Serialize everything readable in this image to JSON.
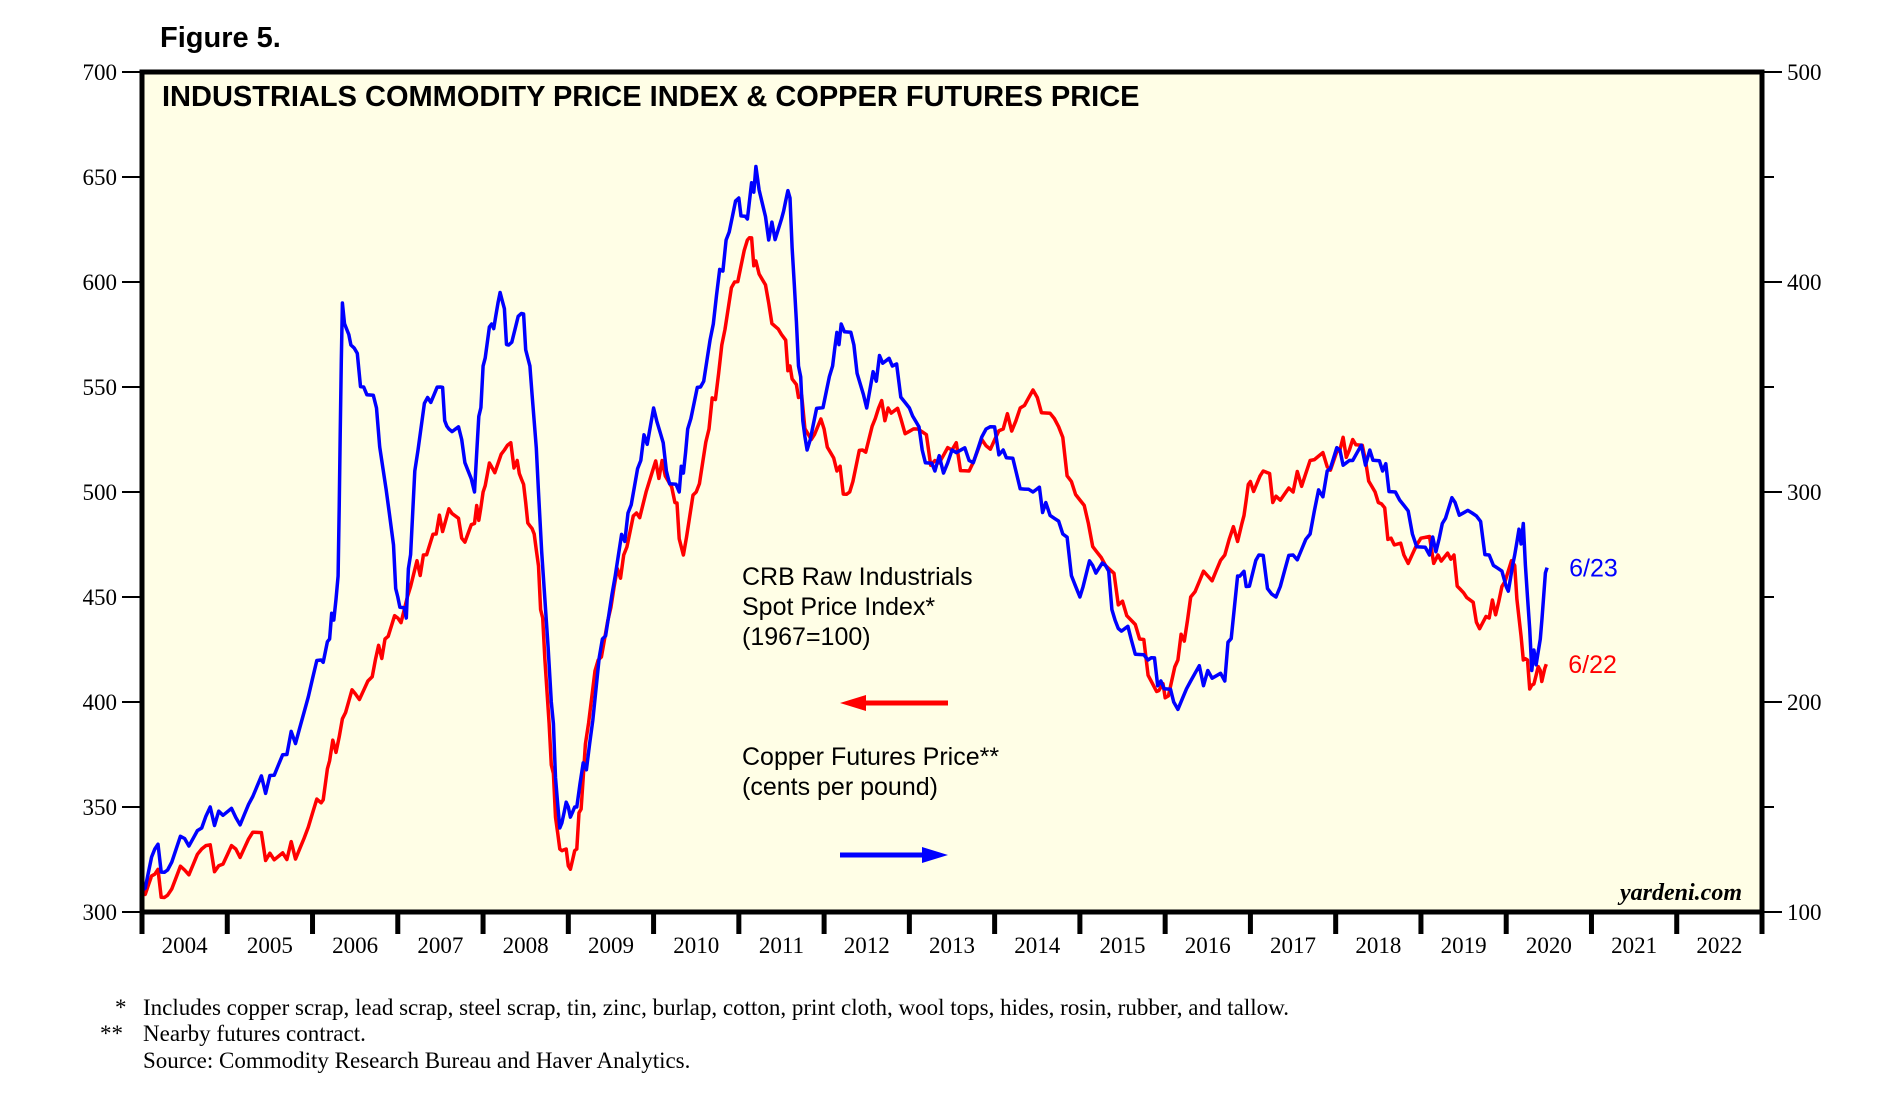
{
  "figure_label": "Figure 5.",
  "footnotes": [
    {
      "mark": "*",
      "text": "Includes copper scrap, lead scrap, steel scrap, tin, zinc, burlap, cotton, print cloth, wool tops, hides, rosin, rubber, and tallow."
    },
    {
      "mark": "**",
      "text": "Nearby futures contract."
    },
    {
      "mark": "",
      "text": "Source: Commodity Research Bureau and Haver Analytics."
    }
  ],
  "colors": {
    "background": "#fffee6",
    "crb": "#ff0000",
    "copper": "#0000ff",
    "axis": "#000000"
  },
  "chart_data": {
    "type": "line",
    "title": "INDUSTRIALS COMMODITY PRICE INDEX & COPPER FUTURES PRICE",
    "source_note": "yardeni.com",
    "xlabel": "",
    "x_tick_labels": [
      "2004",
      "2005",
      "2006",
      "2007",
      "2008",
      "2009",
      "2010",
      "2011",
      "2012",
      "2013",
      "2014",
      "2015",
      "2016",
      "2017",
      "2018",
      "2019",
      "2020",
      "2021",
      "2022"
    ],
    "xlim": [
      2004.0,
      2023.0
    ],
    "left_axis": {
      "label": "CRB Raw Industrials Spot Price Index (1967=100)",
      "ylim": [
        300,
        700
      ],
      "ticks": [
        300,
        350,
        400,
        450,
        500,
        550,
        600,
        650,
        700
      ]
    },
    "right_axis": {
      "label": "Copper Futures Price (cents per pound)",
      "ylim": [
        100,
        500
      ],
      "ticks": [
        100,
        200,
        300,
        400,
        500
      ]
    },
    "grid": false,
    "legend": [
      {
        "lines": [
          "CRB Raw Industrials",
          "Spot Price Index*",
          "(1967=100)"
        ],
        "arrow": "left",
        "color": "#ff0000"
      },
      {
        "lines": [
          "Copper Futures Price**",
          "(cents per pound)"
        ],
        "arrow": "right",
        "color": "#0000ff"
      }
    ],
    "series": [
      {
        "name": "CRB Raw Industrials Spot Price Index",
        "axis": "left",
        "color": "#ff0000",
        "end_label": "6/22",
        "x": [
          2004.0,
          2004.15,
          2004.3,
          2004.5,
          2004.7,
          2004.9,
          2005.1,
          2005.3,
          2005.5,
          2005.7,
          2005.9,
          2006.1,
          2006.2,
          2006.35,
          2006.5,
          2006.7,
          2006.85,
          2007.0,
          2007.15,
          2007.3,
          2007.45,
          2007.6,
          2007.75,
          2007.9,
          2008.0,
          2008.1,
          2008.25,
          2008.4,
          2008.5,
          2008.6,
          2008.7,
          2008.8,
          2008.9,
          2009.0,
          2009.1,
          2009.2,
          2009.35,
          2009.5,
          2009.65,
          2009.8,
          2009.95,
          2010.1,
          2010.25,
          2010.35,
          2010.5,
          2010.65,
          2010.8,
          2010.95,
          2011.1,
          2011.2,
          2011.35,
          2011.5,
          2011.6,
          2011.7,
          2011.85,
          2012.0,
          2012.15,
          2012.3,
          2012.45,
          2012.6,
          2012.75,
          2012.9,
          2013.1,
          2013.3,
          2013.5,
          2013.7,
          2013.9,
          2014.1,
          2014.3,
          2014.5,
          2014.7,
          2014.9,
          2015.1,
          2015.3,
          2015.5,
          2015.7,
          2015.9,
          2016.0,
          2016.15,
          2016.3,
          2016.5,
          2016.7,
          2016.9,
          2017.0,
          2017.15,
          2017.3,
          2017.5,
          2017.7,
          2017.9,
          2018.05,
          2018.2,
          2018.35,
          2018.5,
          2018.65,
          2018.8,
          2019.0,
          2019.2,
          2019.35,
          2019.5,
          2019.65,
          2019.8,
          2019.95,
          2020.1,
          2020.2,
          2020.3,
          2020.4,
          2020.47
        ],
        "values": [
          310,
          318,
          308,
          320,
          330,
          322,
          330,
          338,
          328,
          325,
          335,
          352,
          372,
          392,
          404,
          412,
          430,
          440,
          455,
          470,
          480,
          492,
          478,
          485,
          500,
          512,
          520,
          515,
          495,
          480,
          440,
          370,
          330,
          322,
          330,
          380,
          420,
          445,
          470,
          490,
          505,
          515,
          495,
          470,
          500,
          530,
          570,
          600,
          620,
          610,
          590,
          575,
          560,
          545,
          525,
          530,
          510,
          500,
          520,
          535,
          540,
          535,
          530,
          515,
          520,
          510,
          522,
          530,
          540,
          545,
          535,
          505,
          485,
          465,
          448,
          430,
          405,
          402,
          420,
          450,
          460,
          470,
          485,
          505,
          510,
          498,
          500,
          515,
          512,
          520,
          525,
          515,
          495,
          478,
          470,
          478,
          470,
          468,
          452,
          438,
          440,
          455,
          465,
          420,
          408,
          415,
          418
        ]
      },
      {
        "name": "Copper Futures Price",
        "axis": "right",
        "color": "#0000ff",
        "end_label": "6/23",
        "x": [
          2004.0,
          2004.15,
          2004.3,
          2004.5,
          2004.7,
          2004.9,
          2005.1,
          2005.3,
          2005.5,
          2005.7,
          2005.9,
          2006.1,
          2006.2,
          2006.3,
          2006.35,
          2006.45,
          2006.6,
          2006.75,
          2006.9,
          2007.0,
          2007.1,
          2007.2,
          2007.35,
          2007.5,
          2007.6,
          2007.75,
          2007.9,
          2008.0,
          2008.1,
          2008.2,
          2008.3,
          2008.45,
          2008.55,
          2008.65,
          2008.8,
          2008.9,
          2009.0,
          2009.1,
          2009.25,
          2009.4,
          2009.55,
          2009.7,
          2009.85,
          2010.0,
          2010.15,
          2010.3,
          2010.4,
          2010.55,
          2010.7,
          2010.85,
          2011.0,
          2011.1,
          2011.2,
          2011.35,
          2011.5,
          2011.6,
          2011.7,
          2011.8,
          2011.95,
          2012.1,
          2012.2,
          2012.35,
          2012.5,
          2012.65,
          2012.8,
          2013.0,
          2013.15,
          2013.3,
          2013.5,
          2013.7,
          2013.9,
          2014.1,
          2014.25,
          2014.45,
          2014.6,
          2014.8,
          2015.0,
          2015.15,
          2015.3,
          2015.45,
          2015.6,
          2015.8,
          2015.95,
          2016.1,
          2016.3,
          2016.5,
          2016.7,
          2016.85,
          2016.95,
          2017.1,
          2017.3,
          2017.5,
          2017.7,
          2017.9,
          2018.05,
          2018.2,
          2018.4,
          2018.55,
          2018.7,
          2018.9,
          2019.1,
          2019.25,
          2019.4,
          2019.6,
          2019.8,
          2020.0,
          2020.1,
          2020.2,
          2020.3,
          2020.4,
          2020.48
        ],
        "values": [
          110,
          130,
          120,
          135,
          140,
          148,
          145,
          155,
          165,
          175,
          195,
          220,
          230,
          260,
          390,
          370,
          350,
          340,
          290,
          250,
          240,
          310,
          345,
          350,
          330,
          325,
          300,
          360,
          380,
          395,
          370,
          385,
          360,
          300,
          200,
          140,
          150,
          150,
          180,
          230,
          260,
          290,
          315,
          340,
          310,
          300,
          330,
          350,
          380,
          420,
          440,
          430,
          455,
          420,
          430,
          440,
          360,
          320,
          340,
          360,
          380,
          370,
          340,
          365,
          360,
          340,
          320,
          310,
          320,
          315,
          330,
          320,
          310,
          300,
          295,
          280,
          250,
          265,
          265,
          235,
          230,
          220,
          210,
          200,
          210,
          215,
          210,
          260,
          255,
          270,
          250,
          270,
          280,
          310,
          320,
          315,
          320,
          310,
          300,
          280,
          270,
          285,
          295,
          290,
          270,
          255,
          270,
          285,
          215,
          230,
          264
        ]
      }
    ]
  }
}
